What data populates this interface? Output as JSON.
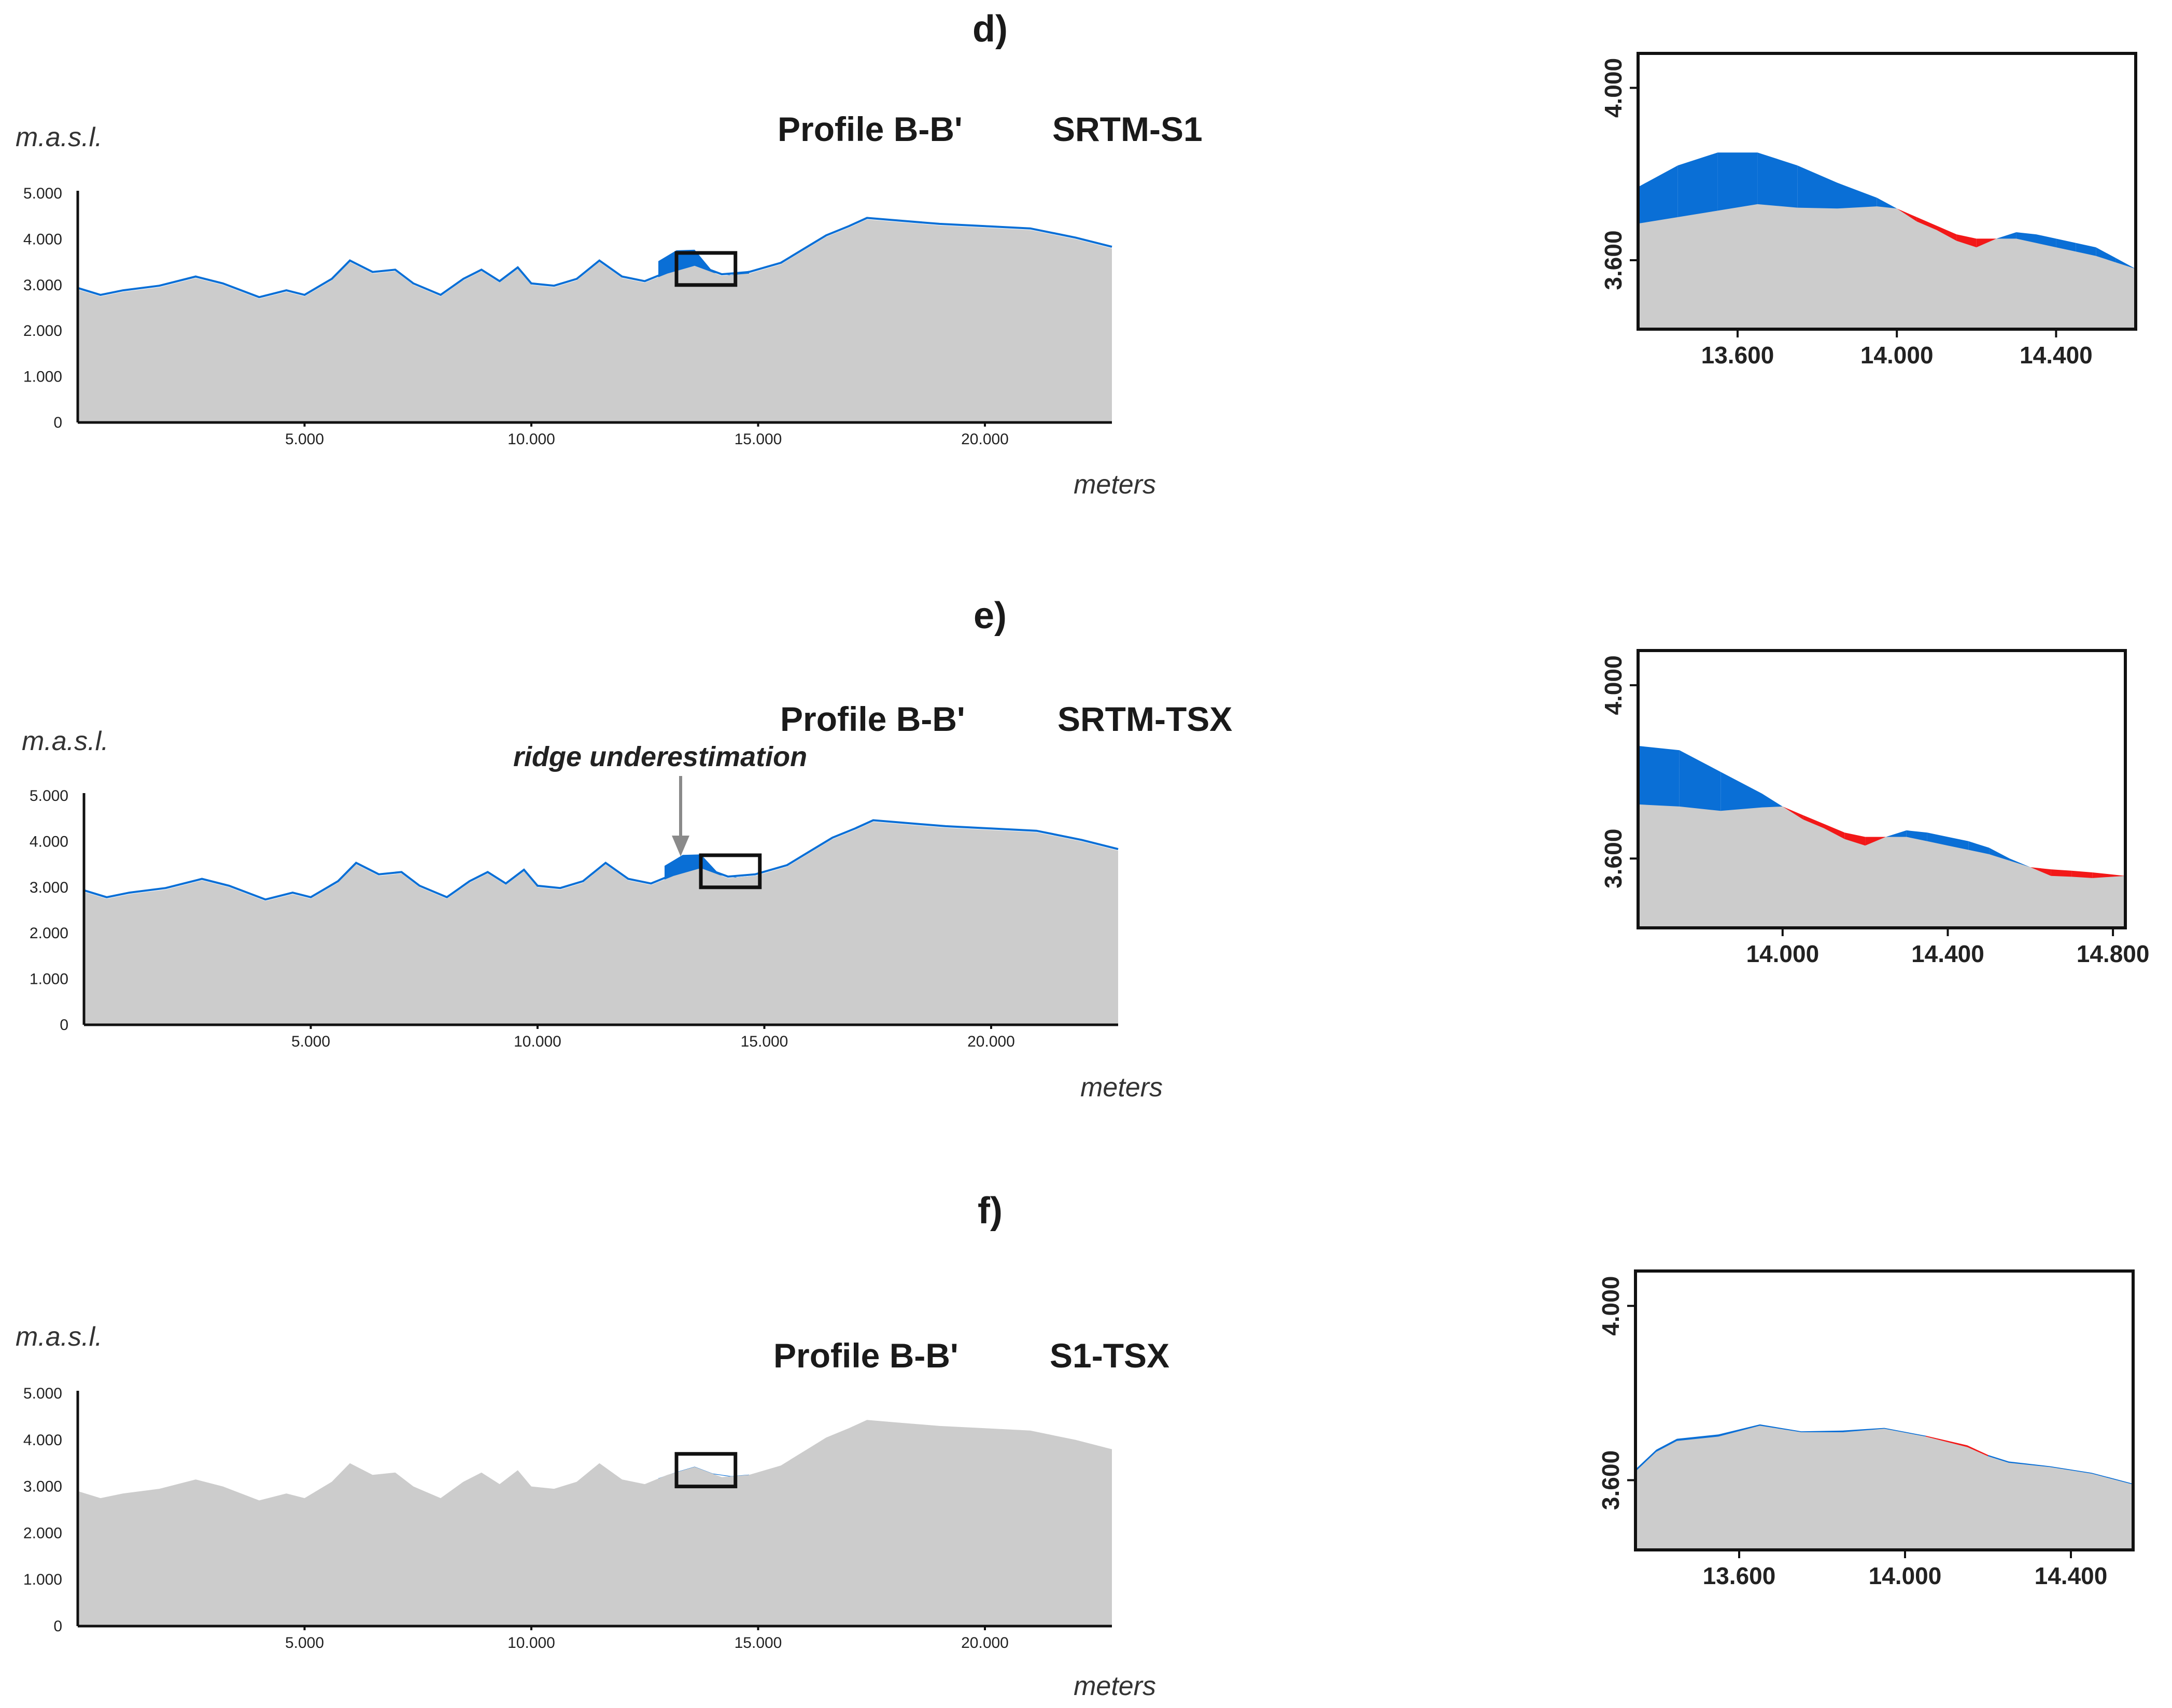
{
  "figure": {
    "colors": {
      "terrain": "#cccccc",
      "positive": "#0a6fd6",
      "negative": "#f21818",
      "annotation_arrow": "#8a8a8a"
    }
  },
  "chart_data": [
    {
      "panel": "d)",
      "type": "area",
      "title": "Profile B-B'",
      "comparison": "SRTM-S1",
      "ylabel": "m.a.s.l.",
      "xlabel": "meters",
      "xlim": [
        0,
        22800
      ],
      "ylim": [
        0,
        5000
      ],
      "xticks": [
        5000,
        10000,
        15000,
        20000
      ],
      "xtick_labels": [
        "5.000",
        "10.000",
        "15.000",
        "20.000"
      ],
      "yticks": [
        0,
        1000,
        2000,
        3000,
        4000,
        5000
      ],
      "ytick_labels": [
        "0",
        "1.000",
        "2.000",
        "3.000",
        "4.000",
        "5.000"
      ],
      "series": [
        {
          "name": "terrain",
          "x": [
            0,
            500,
            1000,
            1800,
            2600,
            3200,
            4000,
            4600,
            5000,
            5600,
            6000,
            6500,
            7000,
            7400,
            8000,
            8500,
            8900,
            9300,
            9700,
            10000,
            10500,
            11000,
            11500,
            12000,
            12500,
            13000,
            13600,
            14200,
            14800,
            15500,
            16000,
            16500,
            17000,
            17400,
            18000,
            19000,
            20000,
            21000,
            22000,
            22800
          ],
          "values": [
            2900,
            2750,
            2850,
            2950,
            3150,
            3000,
            2700,
            2850,
            2750,
            3100,
            3500,
            3250,
            3300,
            3000,
            2750,
            3100,
            3300,
            3050,
            3350,
            3000,
            2950,
            3100,
            3500,
            3150,
            3050,
            3250,
            3420,
            3200,
            3250,
            3450,
            3750,
            4050,
            4250,
            4430,
            4380,
            4300,
            4250,
            4200,
            4000,
            3800
          ]
        },
        {
          "name": "difference",
          "x": [
            12800,
            13200,
            13600,
            14000,
            14400,
            14800
          ],
          "values": [
            350,
            450,
            350,
            20,
            -40,
            60
          ]
        }
      ],
      "highlight_box": {
        "x_range": [
          13200,
          14500
        ],
        "y_range": [
          3000,
          3700
        ]
      },
      "zoom": {
        "xlim": [
          13350,
          14600
        ],
        "ylim": [
          3440,
          4080
        ],
        "xticks": [
          13600,
          14000,
          14400
        ],
        "xtick_labels": [
          "13.600",
          "14.000",
          "14.400"
        ],
        "yticks": [
          3600,
          4000
        ],
        "ytick_labels": [
          "3.600",
          "4.000"
        ],
        "terrain": {
          "x": [
            13350,
            13450,
            13550,
            13650,
            13750,
            13850,
            13950,
            14000,
            14050,
            14100,
            14150,
            14200,
            14250,
            14300,
            14350,
            14400,
            14450,
            14500,
            14550,
            14600
          ],
          "values": [
            3685,
            3700,
            3715,
            3730,
            3722,
            3720,
            3725,
            3720,
            3700,
            3680,
            3660,
            3650,
            3650,
            3650,
            3640,
            3630,
            3620,
            3610,
            3595,
            3580
          ]
        },
        "other_dem": {
          "x": [
            13350,
            13450,
            13550,
            13650,
            13750,
            13850,
            13950,
            14000,
            14050,
            14100,
            14150,
            14200,
            14250,
            14300,
            14350,
            14400,
            14450,
            14500,
            14550,
            14600
          ],
          "values": [
            3770,
            3820,
            3850,
            3850,
            3820,
            3780,
            3745,
            3720,
            3690,
            3670,
            3645,
            3630,
            3650,
            3665,
            3660,
            3650,
            3640,
            3630,
            3605,
            3580
          ]
        }
      }
    },
    {
      "panel": "e)",
      "type": "area",
      "title": "Profile B-B'",
      "comparison": "SRTM-TSX",
      "annotation": "ridge underestimation",
      "ylabel": "m.a.s.l.",
      "xlabel": "meters",
      "xlim": [
        0,
        22800
      ],
      "ylim": [
        0,
        5000
      ],
      "xticks": [
        5000,
        10000,
        15000,
        20000
      ],
      "xtick_labels": [
        "5.000",
        "10.000",
        "15.000",
        "20.000"
      ],
      "yticks": [
        0,
        1000,
        2000,
        3000,
        4000,
        5000
      ],
      "ytick_labels": [
        "0",
        "1.000",
        "2.000",
        "3.000",
        "4.000",
        "5.000"
      ],
      "series": [
        {
          "name": "terrain",
          "x": [
            0,
            500,
            1000,
            1800,
            2600,
            3200,
            4000,
            4600,
            5000,
            5600,
            6000,
            6500,
            7000,
            7400,
            8000,
            8500,
            8900,
            9300,
            9700,
            10000,
            10500,
            11000,
            11500,
            12000,
            12500,
            13000,
            13600,
            14200,
            14800,
            15500,
            16000,
            16500,
            17000,
            17400,
            18000,
            19000,
            20000,
            21000,
            22000,
            22800
          ],
          "values": [
            2900,
            2750,
            2850,
            2950,
            3150,
            3000,
            2700,
            2850,
            2750,
            3100,
            3500,
            3250,
            3300,
            3000,
            2750,
            3100,
            3300,
            3050,
            3350,
            3000,
            2950,
            3100,
            3500,
            3150,
            3050,
            3250,
            3420,
            3200,
            3250,
            3450,
            3750,
            4050,
            4250,
            4430,
            4380,
            4300,
            4250,
            4200,
            4000,
            3800
          ]
        },
        {
          "name": "difference",
          "x": [
            12800,
            13200,
            13600,
            14000,
            14400,
            14800
          ],
          "values": [
            300,
            400,
            300,
            20,
            -30,
            -20
          ]
        }
      ],
      "highlight_box": {
        "x_range": [
          13600,
          14900
        ],
        "y_range": [
          3000,
          3700
        ]
      },
      "zoom": {
        "xlim": [
          13650,
          14830
        ],
        "ylim": [
          3440,
          4080
        ],
        "xticks": [
          14000,
          14400,
          14800
        ],
        "xtick_labels": [
          "14.000",
          "14.400",
          "14.800"
        ],
        "yticks": [
          3600,
          4000
        ],
        "ytick_labels": [
          "3.600",
          "4.000"
        ],
        "terrain": {
          "x": [
            13650,
            13750,
            13850,
            13950,
            14000,
            14050,
            14100,
            14150,
            14200,
            14250,
            14300,
            14350,
            14400,
            14450,
            14500,
            14550,
            14600,
            14650,
            14700,
            14750,
            14830
          ],
          "values": [
            3725,
            3720,
            3710,
            3718,
            3720,
            3700,
            3680,
            3660,
            3650,
            3650,
            3650,
            3640,
            3630,
            3620,
            3610,
            3595,
            3580,
            3575,
            3572,
            3568,
            3560
          ]
        },
        "other_dem": {
          "x": [
            13650,
            13750,
            13850,
            13950,
            14000,
            14050,
            14100,
            14150,
            14200,
            14250,
            14300,
            14350,
            14400,
            14450,
            14500,
            14550,
            14600,
            14650,
            14700,
            14750,
            14830
          ],
          "values": [
            3860,
            3850,
            3800,
            3750,
            3720,
            3690,
            3670,
            3645,
            3630,
            3650,
            3665,
            3660,
            3650,
            3640,
            3625,
            3600,
            3580,
            3560,
            3558,
            3555,
            3560
          ]
        }
      }
    },
    {
      "panel": "f)",
      "type": "area",
      "title": "Profile B-B'",
      "comparison": "S1-TSX",
      "ylabel": "m.a.s.l.",
      "xlabel": "meters",
      "xlim": [
        0,
        22800
      ],
      "ylim": [
        0,
        5000
      ],
      "xticks": [
        5000,
        10000,
        15000,
        20000
      ],
      "xtick_labels": [
        "5.000",
        "10.000",
        "15.000",
        "20.000"
      ],
      "yticks": [
        0,
        1000,
        2000,
        3000,
        4000,
        5000
      ],
      "ytick_labels": [
        "0",
        "1.000",
        "2.000",
        "3.000",
        "4.000",
        "5.000"
      ],
      "series": [
        {
          "name": "terrain",
          "x": [
            0,
            500,
            1000,
            1800,
            2600,
            3200,
            4000,
            4600,
            5000,
            5600,
            6000,
            6500,
            7000,
            7400,
            8000,
            8500,
            8900,
            9300,
            9700,
            10000,
            10500,
            11000,
            11500,
            12000,
            12500,
            13000,
            13600,
            14200,
            14800,
            15500,
            16000,
            16500,
            17000,
            17400,
            18000,
            19000,
            20000,
            21000,
            22000,
            22800
          ],
          "values": [
            2900,
            2750,
            2850,
            2950,
            3150,
            3000,
            2700,
            2850,
            2750,
            3100,
            3500,
            3250,
            3300,
            3000,
            2750,
            3100,
            3300,
            3050,
            3350,
            3000,
            2950,
            3100,
            3500,
            3150,
            3050,
            3250,
            3420,
            3200,
            3250,
            3450,
            3750,
            4050,
            4250,
            4430,
            4380,
            4300,
            4250,
            4200,
            4000,
            3800
          ]
        },
        {
          "name": "difference",
          "x": [
            12800,
            13200,
            13600,
            14000,
            14400,
            14800
          ],
          "values": [
            5,
            5,
            5,
            5,
            5,
            5
          ]
        }
      ],
      "highlight_box": {
        "x_range": [
          13200,
          14500
        ],
        "y_range": [
          3000,
          3700
        ]
      },
      "zoom": {
        "xlim": [
          13350,
          14550
        ],
        "ylim": [
          3440,
          4080
        ],
        "xticks": [
          13600,
          14000,
          14400
        ],
        "xtick_labels": [
          "13.600",
          "14.000",
          "14.400"
        ],
        "yticks": [
          3600,
          4000
        ],
        "ytick_labels": [
          "3.600",
          "4.000"
        ],
        "terrain": {
          "x": [
            13350,
            13400,
            13450,
            13550,
            13650,
            13750,
            13850,
            13950,
            14050,
            14150,
            14200,
            14250,
            14350,
            14450,
            14550
          ],
          "values": [
            3620,
            3665,
            3690,
            3700,
            3725,
            3710,
            3710,
            3718,
            3700,
            3680,
            3655,
            3640,
            3630,
            3615,
            3590
          ]
        },
        "other_dem": {
          "x": [
            13350,
            13400,
            13450,
            13550,
            13650,
            13750,
            13850,
            13950,
            14050,
            14150,
            14200,
            14250,
            14350,
            14450,
            14550
          ],
          "values": [
            3625,
            3670,
            3695,
            3705,
            3728,
            3712,
            3714,
            3720,
            3702,
            3676,
            3658,
            3643,
            3632,
            3617,
            3592
          ]
        }
      }
    }
  ]
}
